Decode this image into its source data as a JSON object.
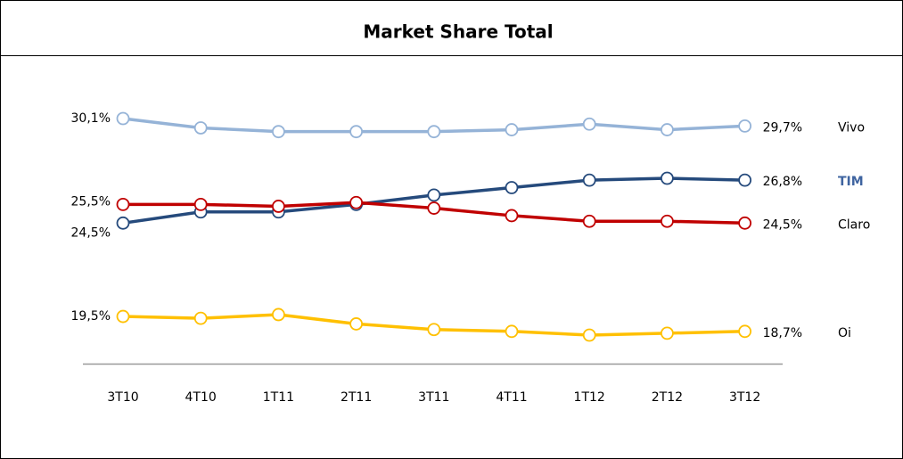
{
  "chart_data": {
    "type": "line",
    "title": "Market Share Total",
    "categories": [
      "3T10",
      "4T10",
      "1T11",
      "2T11",
      "3T11",
      "4T11",
      "1T12",
      "2T12",
      "3T12"
    ],
    "series": [
      {
        "name": "Vivo",
        "color": "#95b3d7",
        "values": [
          30.1,
          29.6,
          29.4,
          29.4,
          29.4,
          29.5,
          29.8,
          29.5,
          29.7
        ],
        "value_labels": [
          "30,1%",
          null,
          null,
          null,
          null,
          null,
          null,
          null,
          "29,7%"
        ]
      },
      {
        "name": "TIM",
        "color": "#254a7c",
        "values": [
          24.5,
          25.1,
          25.1,
          25.5,
          26.0,
          26.4,
          26.8,
          26.9,
          26.8
        ],
        "value_labels": [
          "24,5%",
          null,
          null,
          null,
          null,
          null,
          null,
          null,
          "26,8%"
        ]
      },
      {
        "name": "Claro",
        "color": "#c00000",
        "values": [
          25.5,
          25.5,
          25.4,
          25.6,
          25.3,
          24.9,
          24.6,
          24.6,
          24.5
        ],
        "value_labels": [
          "25,5%",
          null,
          null,
          null,
          null,
          null,
          null,
          null,
          "24,5%"
        ]
      },
      {
        "name": "Oi",
        "color": "#ffc000",
        "values": [
          19.5,
          19.4,
          19.6,
          19.1,
          18.8,
          18.7,
          18.5,
          18.6,
          18.7
        ],
        "value_labels": [
          "19,5%",
          null,
          null,
          null,
          null,
          null,
          null,
          null,
          "18,7%"
        ]
      }
    ]
  }
}
